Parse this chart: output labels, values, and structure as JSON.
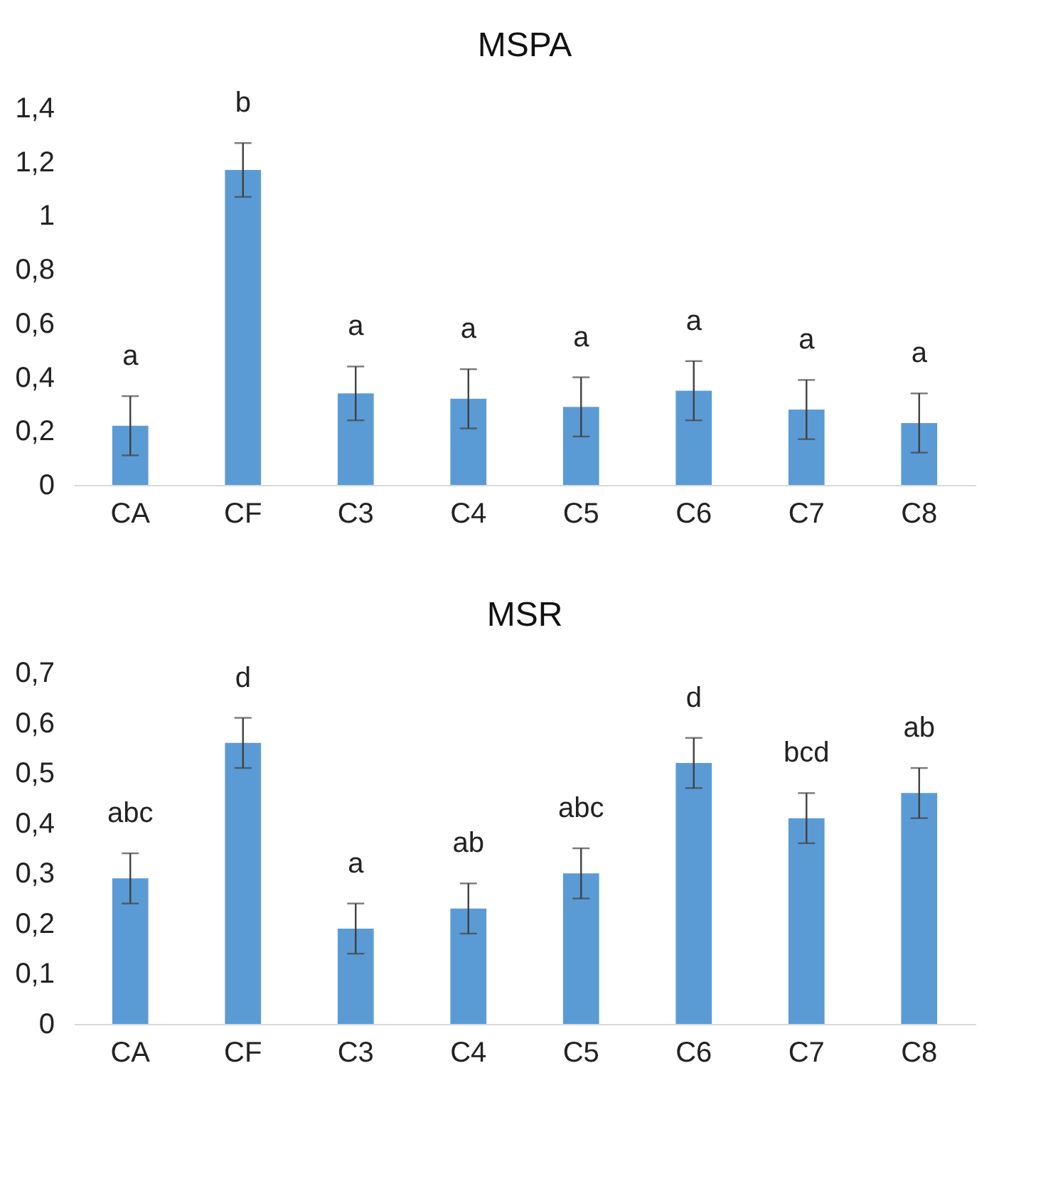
{
  "chart_data": [
    {
      "type": "bar",
      "title": "MSPA",
      "categories": [
        "CA",
        "CF",
        "C3",
        "C4",
        "C5",
        "C6",
        "C7",
        "C8"
      ],
      "values": [
        0.22,
        1.17,
        0.34,
        0.32,
        0.29,
        0.35,
        0.28,
        0.23
      ],
      "errors": [
        0.11,
        0.1,
        0.1,
        0.11,
        0.11,
        0.11,
        0.11,
        0.11
      ],
      "color": "#5b9bd5",
      "ylim": [
        0,
        1.4
      ],
      "yticks": [
        {
          "value": 0,
          "label": "0"
        },
        {
          "value": 0.2,
          "label": "0,2"
        },
        {
          "value": 0.4,
          "label": "0,4"
        },
        {
          "value": 0.6,
          "label": "0,6"
        },
        {
          "value": 0.8,
          "label": "0,8"
        },
        {
          "value": 1,
          "label": "1"
        },
        {
          "value": 1.2,
          "label": "1,2"
        },
        {
          "value": 1.4,
          "label": "1,4"
        }
      ],
      "grid": false,
      "annotations": [
        {
          "text": "a",
          "x": "CA",
          "y": 0.33
        },
        {
          "text": "b",
          "x": "CF",
          "y": 1.27
        },
        {
          "text": "a",
          "x": "C3",
          "y": 0.44
        },
        {
          "text": "a",
          "x": "C4",
          "y": 0.43
        },
        {
          "text": "a",
          "x": "C5",
          "y": 0.4
        },
        {
          "text": "a",
          "x": "C6",
          "y": 0.46
        },
        {
          "text": "a",
          "x": "C7",
          "y": 0.39
        },
        {
          "text": "a",
          "x": "C8",
          "y": 0.34
        }
      ]
    },
    {
      "type": "bar",
      "title": "MSR",
      "categories": [
        "CA",
        "CF",
        "C3",
        "C4",
        "C5",
        "C6",
        "C7",
        "C8"
      ],
      "values": [
        0.29,
        0.56,
        0.19,
        0.23,
        0.3,
        0.52,
        0.41,
        0.46
      ],
      "errors": [
        0.05,
        0.05,
        0.05,
        0.05,
        0.05,
        0.05,
        0.05,
        0.05
      ],
      "color": "#5b9bd5",
      "ylim": [
        0,
        0.7
      ],
      "yticks": [
        {
          "value": 0,
          "label": "0"
        },
        {
          "value": 0.1,
          "label": "0,1"
        },
        {
          "value": 0.2,
          "label": "0,2"
        },
        {
          "value": 0.3,
          "label": "0,3"
        },
        {
          "value": 0.4,
          "label": "0,4"
        },
        {
          "value": 0.5,
          "label": "0,5"
        },
        {
          "value": 0.6,
          "label": "0,6"
        },
        {
          "value": 0.7,
          "label": "0,7"
        }
      ],
      "grid": false,
      "annotations": [
        {
          "text": "abc",
          "x": "CA",
          "y": 0.34
        },
        {
          "text": "d",
          "x": "CF",
          "y": 0.61
        },
        {
          "text": "a",
          "x": "C3",
          "y": 0.24
        },
        {
          "text": "ab",
          "x": "C4",
          "y": 0.28
        },
        {
          "text": "abc",
          "x": "C5",
          "y": 0.35
        },
        {
          "text": "d",
          "x": "C6",
          "y": 0.57
        },
        {
          "text": "bcd",
          "x": "C7",
          "y": 0.46
        },
        {
          "text": "ab",
          "x": "C8",
          "y": 0.51
        }
      ]
    }
  ]
}
